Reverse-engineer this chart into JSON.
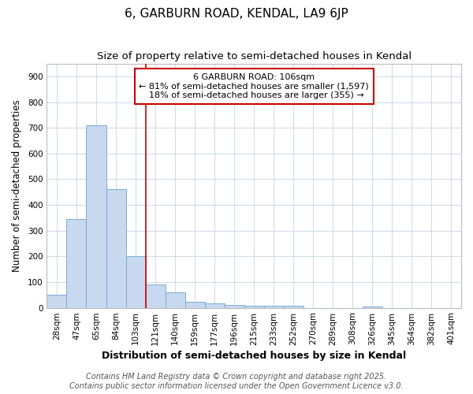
{
  "title": "6, GARBURN ROAD, KENDAL, LA9 6JP",
  "subtitle": "Size of property relative to semi-detached houses in Kendal",
  "xlabel": "Distribution of semi-detached houses by size in Kendal",
  "ylabel": "Number of semi-detached properties",
  "categories": [
    "28sqm",
    "47sqm",
    "65sqm",
    "84sqm",
    "103sqm",
    "121sqm",
    "140sqm",
    "159sqm",
    "177sqm",
    "196sqm",
    "215sqm",
    "233sqm",
    "252sqm",
    "270sqm",
    "289sqm",
    "308sqm",
    "326sqm",
    "345sqm",
    "364sqm",
    "382sqm",
    "401sqm"
  ],
  "values": [
    50,
    345,
    710,
    460,
    200,
    92,
    60,
    22,
    18,
    12,
    8,
    8,
    8,
    0,
    0,
    0,
    5,
    0,
    0,
    0,
    0
  ],
  "bar_color": "#c8d8ee",
  "bar_edge_color": "#7aadd4",
  "red_line_x": 4.5,
  "annotation_title": "6 GARBURN ROAD: 106sqm",
  "annotation_line1": "← 81% of semi-detached houses are smaller (1,597)",
  "annotation_line2": "18% of semi-detached houses are larger (355) →",
  "annotation_box_color": "#ffffff",
  "annotation_box_edge": "#cc0000",
  "red_line_color": "#cc0000",
  "ylim": [
    0,
    950
  ],
  "yticks": [
    0,
    100,
    200,
    300,
    400,
    500,
    600,
    700,
    800,
    900
  ],
  "footnote1": "Contains HM Land Registry data © Crown copyright and database right 2025.",
  "footnote2": "Contains public sector information licensed under the Open Government Licence v3.0.",
  "plot_bg_color": "#ffffff",
  "fig_bg_color": "#ffffff",
  "grid_color": "#d0dce8",
  "title_fontsize": 11,
  "subtitle_fontsize": 9.5,
  "xlabel_fontsize": 9,
  "ylabel_fontsize": 8.5,
  "tick_fontsize": 7.5,
  "annotation_fontsize": 8,
  "footnote_fontsize": 7
}
